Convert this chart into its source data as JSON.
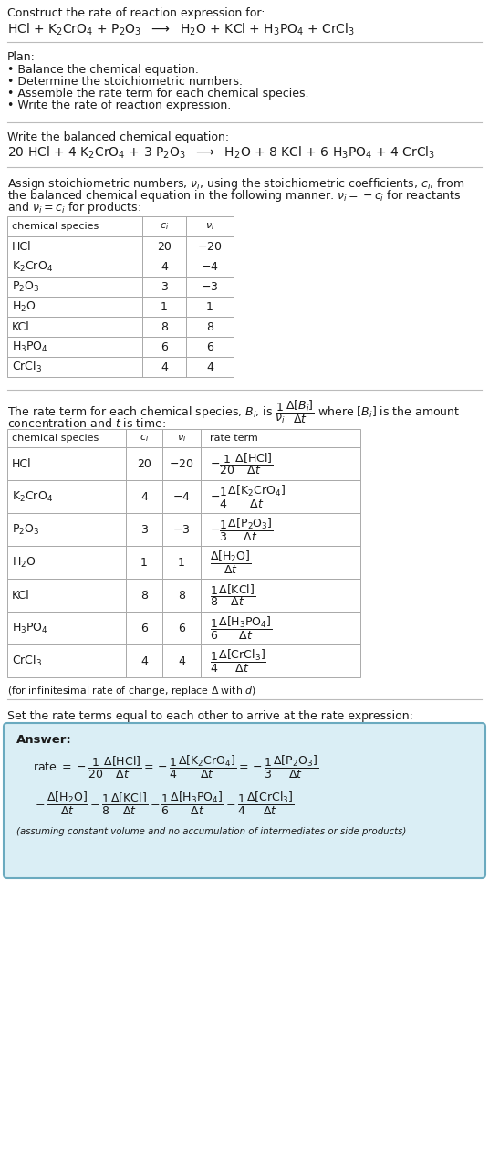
{
  "bg_color": "#ffffff",
  "text_color": "#1a1a1a",
  "table_border": "#aaaaaa",
  "hr_color": "#bbbbbb",
  "title_line1": "Construct the rate of reaction expression for:",
  "plan_label": "Plan:",
  "plan_items": [
    "Balance the chemical equation.",
    "Determine the stoichiometric numbers.",
    "Assemble the rate term for each chemical species.",
    "Write the rate of reaction expression."
  ],
  "balanced_label": "Write the balanced chemical equation:",
  "assign_text": [
    "Assign stoichiometric numbers, $\\nu_i$, using the stoichiometric coefficients, $c_i$, from",
    "the balanced chemical equation in the following manner: $\\nu_i = -c_i$ for reactants",
    "and $\\nu_i = c_i$ for products:"
  ],
  "rate_term_text_line2": "concentration and $t$ is time:",
  "infinitesimal_note": "(for infinitesimal rate of change, replace $\\Delta$ with $d$)",
  "set_equal_text": "Set the rate terms equal to each other to arrive at the rate expression:",
  "answer_label": "Answer:",
  "answer_box_color": "#daeef5",
  "answer_box_border": "#6aaabf",
  "answer_note": "(assuming constant volume and no accumulation of intermediates or side products)"
}
